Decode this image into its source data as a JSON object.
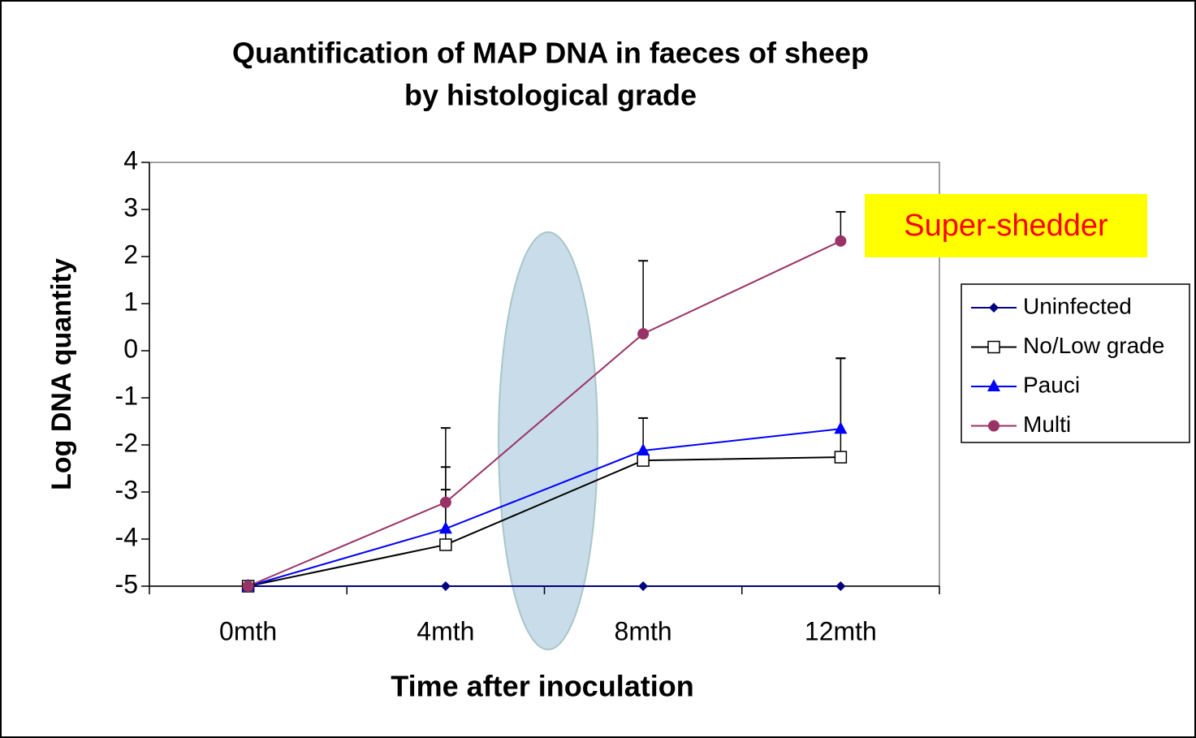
{
  "chart_data": {
    "type": "line",
    "title": [
      "Quantification of MAP DNA in faeces of sheep",
      "by histological grade"
    ],
    "x_label": "Time after inoculation",
    "y_label": "Log DNA quantity",
    "categories": [
      "0mth",
      "4mth",
      "8mth",
      "12mth"
    ],
    "ylim": [
      -5,
      4
    ],
    "yticks": [
      -5,
      -4,
      -3,
      -2,
      -1,
      0,
      1,
      2,
      3,
      4
    ],
    "annotation": "Super-shedder",
    "legend": "right",
    "series": [
      {
        "name": "Uninfected",
        "color": "#000080",
        "marker": "diamond",
        "values": [
          -5,
          -5,
          -5,
          -5
        ]
      },
      {
        "name": "No/Low grade",
        "color": "#000000",
        "marker": "square",
        "values": [
          -5,
          -4.12,
          -2.33,
          -2.26
        ],
        "errors": [
          null,
          1.17,
          null,
          2.1
        ]
      },
      {
        "name": "Pauci",
        "color": "#0000ff",
        "marker": "triangle",
        "values": [
          -5,
          -3.78,
          -2.12,
          -1.66
        ],
        "errors": [
          null,
          1.31,
          0.69,
          1.5
        ]
      },
      {
        "name": "Multi",
        "color": "#993366",
        "marker": "circle",
        "values": [
          -5,
          -3.22,
          0.36,
          2.33
        ],
        "errors": [
          null,
          1.58,
          1.55,
          0.62
        ]
      }
    ]
  }
}
